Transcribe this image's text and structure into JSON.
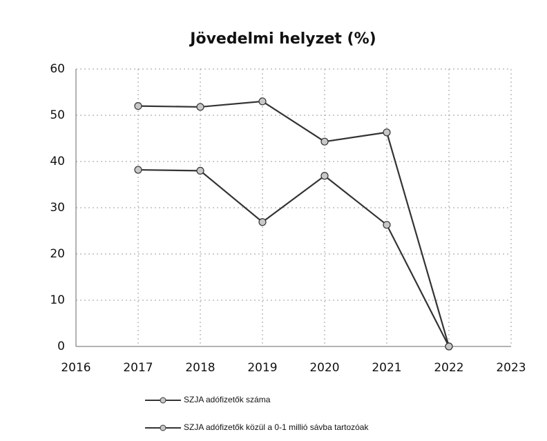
{
  "chart_data": {
    "type": "line",
    "title": "Jövedelmi helyzet (%)",
    "x": [
      2017,
      2018,
      2019,
      2020,
      2021,
      2022
    ],
    "series": [
      {
        "name": "SZJA adófizetők száma",
        "color": "#333333",
        "values": [
          52,
          51.8,
          53,
          44.3,
          46.3,
          0
        ]
      },
      {
        "name": "SZJA adófizetők közül a 0-1 millió sávba tartozóak",
        "color": "#333333",
        "values": [
          38.2,
          38,
          26.9,
          36.9,
          26.3,
          0
        ]
      }
    ],
    "marker_color": "#c8c8c8",
    "xlim": [
      2016,
      2023
    ],
    "xticks": [
      2016,
      2017,
      2018,
      2019,
      2020,
      2021,
      2022,
      2023
    ],
    "ylim": [
      0,
      60
    ],
    "yticks": [
      0,
      10,
      20,
      30,
      40,
      50,
      60
    ],
    "grid": true
  }
}
